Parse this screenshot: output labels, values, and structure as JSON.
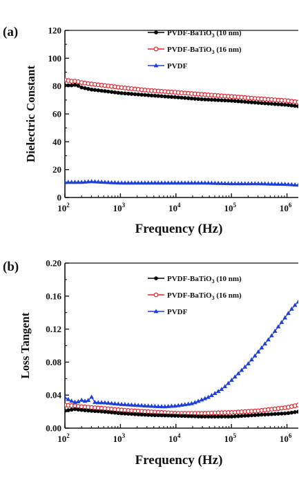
{
  "chart_data": [
    {
      "type": "line",
      "panel_label": "(a)",
      "xlabel": "Frequency (Hz)",
      "ylabel": "Dielectric Constant",
      "xscale": "log",
      "xlim": [
        100,
        1600000
      ],
      "ylim": [
        0,
        120
      ],
      "xticks": [
        {
          "base": "10",
          "exp": "2"
        },
        {
          "base": "10",
          "exp": "3"
        },
        {
          "base": "10",
          "exp": "4"
        },
        {
          "base": "10",
          "exp": "5"
        },
        {
          "base": "10",
          "exp": "6"
        }
      ],
      "yticks": [
        "0",
        "20",
        "40",
        "60",
        "80",
        "100",
        "120"
      ],
      "legend_position": "top-right",
      "series": [
        {
          "name": "PVDF-BaTiO",
          "name_sub": "3",
          "name_suffix": " (10 nm)",
          "color": "#000000",
          "marker": "filled-circle",
          "x": [
            100,
            130,
            160,
            200,
            300,
            500,
            1000,
            3000,
            10000,
            30000,
            100000,
            300000,
            1000000,
            1600000
          ],
          "y": [
            80.5,
            80.5,
            81,
            79,
            77.5,
            76.5,
            75,
            73.5,
            72,
            70.5,
            69.5,
            68,
            66.5,
            65.5
          ]
        },
        {
          "name": "PVDF-BaTiO",
          "name_sub": "3",
          "name_suffix": " (16 nm)",
          "color": "#e8202a",
          "marker": "open-circle",
          "x": [
            100,
            130,
            160,
            200,
            300,
            500,
            1000,
            3000,
            10000,
            30000,
            100000,
            300000,
            1000000,
            1600000
          ],
          "y": [
            84.5,
            83.5,
            83.5,
            82.5,
            81.5,
            80.5,
            79,
            77,
            75.5,
            74,
            72.5,
            71,
            69.5,
            68.5
          ]
        },
        {
          "name": "PVDF",
          "name_sub": "",
          "name_suffix": "",
          "color": "#1f3fd9",
          "marker": "filled-triangle",
          "x": [
            100,
            200,
            300,
            500,
            1000,
            3000,
            10000,
            30000,
            100000,
            300000,
            1000000,
            1600000
          ],
          "y": [
            11,
            11,
            11.5,
            11,
            10.5,
            10.5,
            10.5,
            10.5,
            10,
            10,
            9.5,
            9
          ]
        }
      ]
    },
    {
      "type": "line",
      "panel_label": "(b)",
      "xlabel": "Frequency (Hz)",
      "ylabel": "Loss Tangent",
      "xscale": "log",
      "xlim": [
        100,
        1600000
      ],
      "ylim": [
        0,
        0.2
      ],
      "xticks": [
        {
          "base": "10",
          "exp": "2"
        },
        {
          "base": "10",
          "exp": "3"
        },
        {
          "base": "10",
          "exp": "4"
        },
        {
          "base": "10",
          "exp": "5"
        },
        {
          "base": "10",
          "exp": "6"
        }
      ],
      "yticks": [
        "0.00",
        "0.04",
        "0.08",
        "0.12",
        "0.16",
        "0.20"
      ],
      "legend_position": "top-right",
      "series": [
        {
          "name": "PVDF-BaTiO",
          "name_sub": "3",
          "name_suffix": " (10 nm)",
          "color": "#000000",
          "marker": "filled-circle",
          "x": [
            100,
            150,
            200,
            300,
            500,
            1000,
            3000,
            10000,
            30000,
            100000,
            300000,
            1000000,
            1600000
          ],
          "y": [
            0.021,
            0.023,
            0.022,
            0.021,
            0.02,
            0.018,
            0.016,
            0.015,
            0.014,
            0.014,
            0.016,
            0.018,
            0.02
          ]
        },
        {
          "name": "PVDF-BaTiO",
          "name_sub": "3",
          "name_suffix": " (16 nm)",
          "color": "#e8202a",
          "marker": "open-circle",
          "x": [
            100,
            150,
            200,
            300,
            500,
            1000,
            3000,
            10000,
            30000,
            100000,
            300000,
            1000000,
            1600000
          ],
          "y": [
            0.028,
            0.027,
            0.026,
            0.025,
            0.024,
            0.022,
            0.02,
            0.018,
            0.018,
            0.019,
            0.021,
            0.025,
            0.028
          ]
        },
        {
          "name": "PVDF",
          "name_sub": "",
          "name_suffix": "",
          "color": "#1f3fd9",
          "marker": "filled-triangle",
          "x": [
            100,
            130,
            160,
            200,
            250,
            300,
            350,
            500,
            1000,
            3000,
            6000,
            10000,
            20000,
            40000,
            70000,
            100000,
            200000,
            300000,
            500000,
            700000,
            1000000,
            1300000,
            1600000
          ],
          "y": [
            0.037,
            0.033,
            0.031,
            0.034,
            0.032,
            0.038,
            0.031,
            0.031,
            0.029,
            0.027,
            0.026,
            0.027,
            0.03,
            0.038,
            0.048,
            0.058,
            0.078,
            0.092,
            0.11,
            0.123,
            0.137,
            0.147,
            0.153
          ]
        }
      ]
    }
  ]
}
